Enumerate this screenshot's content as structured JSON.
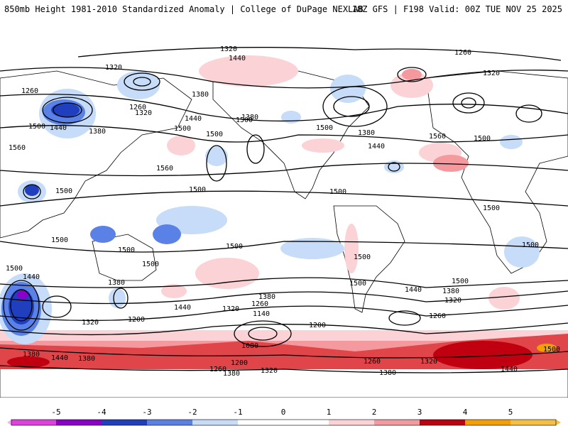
{
  "header": {
    "left": "850mb Height 1981-2010 Standardized Anomaly | College of DuPage NEXLAB",
    "right": "18Z GFS | F198 Valid: 00Z TUE NOV 25 2025"
  },
  "colors": {
    "ocean": "#ffffff",
    "coast": "#000000",
    "neg5": "#e040e0",
    "neg4": "#8a00c8",
    "neg3": "#1f3fbf",
    "neg2": "#5a82e6",
    "neg1": "#c6dcf8",
    "pos1": "#fbd3d6",
    "pos2": "#f49a9e",
    "pos3": "#e0454a",
    "pos4": "#c00010",
    "pos5": "#f5a000"
  },
  "colorbar": {
    "ticks": [
      "-5",
      "-4",
      "-3",
      "-2",
      "-1",
      "0",
      "1",
      "2",
      "3",
      "4",
      "5"
    ]
  },
  "contour_labels": [
    "1320",
    "1260",
    "1440",
    "1320",
    "1260",
    "1380",
    "1260",
    "1320",
    "1500",
    "1440",
    "1380",
    "1560",
    "1500",
    "1440",
    "1380",
    "1500",
    "1500",
    "1560",
    "1500",
    "1500",
    "1500",
    "1380",
    "1440",
    "1560",
    "1500",
    "1500",
    "1500",
    "1500",
    "1500",
    "1500",
    "1500",
    "1500",
    "1500",
    "1440",
    "1380",
    "1320",
    "1380",
    "1260",
    "1140",
    "1440",
    "1320",
    "1200",
    "1200",
    "1320",
    "1380",
    "1440",
    "1380",
    "1080",
    "1200",
    "1260",
    "1320",
    "1380",
    "1260",
    "1320",
    "1380",
    "1440",
    "1500",
    "1500",
    "1500",
    "1500",
    "1440",
    "1380",
    "1320",
    "1260"
  ]
}
